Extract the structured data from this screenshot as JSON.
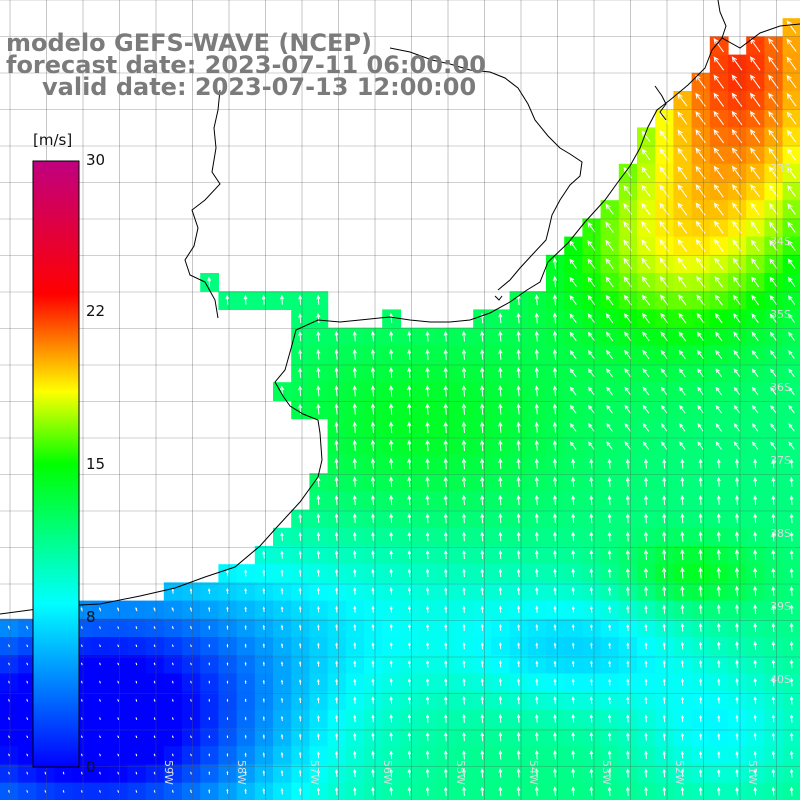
{
  "title": {
    "line1": "modelo GEFS-WAVE (NCEP)",
    "line2": "forecast date: 2023-07-11 06:00:00",
    "line3": "valid date: 2023-07-13 12:00:00"
  },
  "colorbar": {
    "unit": "[m/s]",
    "ticks": [
      "30",
      "22",
      "15",
      "8",
      "0"
    ],
    "tick_values": [
      30,
      22,
      15,
      8,
      0
    ],
    "range": [
      0,
      30
    ],
    "colors": [
      "#0000ff",
      "#00ffff",
      "#00ff00",
      "#ffff00",
      "#ff0000",
      "#c00080"
    ]
  },
  "map": {
    "variable": "wind speed",
    "lon_range": [
      -61.0,
      -50.0
    ],
    "lat_range": [
      -41.0,
      -30.0
    ],
    "lat_labels": [
      "33S",
      "34S",
      "35S",
      "36S",
      "37S",
      "38S",
      "39S",
      "40S"
    ],
    "lon_labels": [
      "59W",
      "58W",
      "57W",
      "56W",
      "55W",
      "54W",
      "53W",
      "52W",
      "51W"
    ],
    "land_color": "#ffffff",
    "coast_color": "#000000",
    "grid_color": "#555555",
    "arrow_color": "#ffffff"
  }
}
